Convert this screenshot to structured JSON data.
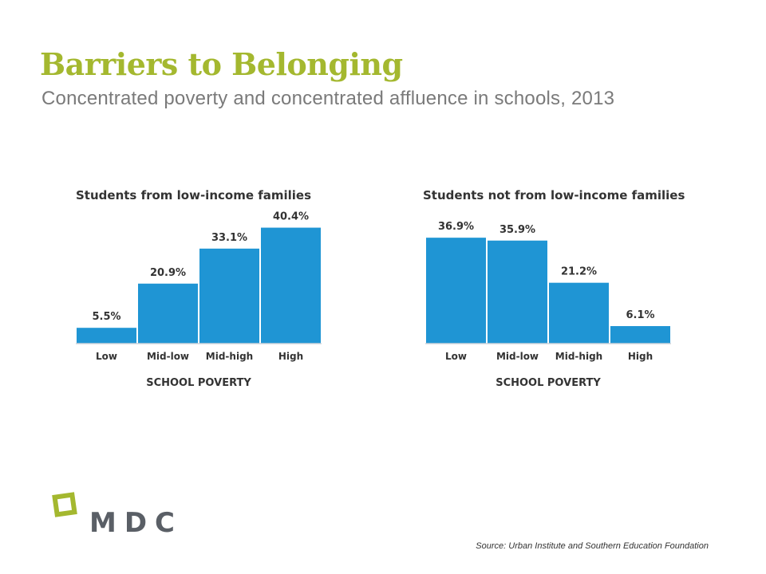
{
  "slide": {
    "title": "Barriers to Belonging",
    "subtitle": "Concentrated poverty and concentrated affluence in schools, 2013",
    "source": "Source: Urban Institute and Southern Education Foundation",
    "logo_text": "MDC"
  },
  "colors": {
    "title": "#a4b82f",
    "bar": "#1f95d4",
    "logo_mark": "#a4b82f",
    "logo_text": "#5a5f66"
  },
  "chart_data": [
    {
      "type": "bar",
      "title": "Students from low-income families",
      "xlabel": "SCHOOL POVERTY",
      "ylabel": "",
      "categories": [
        "Low",
        "Mid-low",
        "Mid-high",
        "High"
      ],
      "values": [
        5.5,
        20.9,
        33.1,
        40.4
      ],
      "data_labels": [
        "5.5%",
        "20.9%",
        "33.1%",
        "40.4%"
      ],
      "ylim": [
        0,
        45
      ],
      "grid": false
    },
    {
      "type": "bar",
      "title": "Students not from low-income families",
      "xlabel": "SCHOOL POVERTY",
      "ylabel": "",
      "categories": [
        "Low",
        "Mid-low",
        "Mid-high",
        "High"
      ],
      "values": [
        36.9,
        35.9,
        21.2,
        6.1
      ],
      "data_labels": [
        "36.9%",
        "35.9%",
        "21.2%",
        "6.1%"
      ],
      "ylim": [
        0,
        45
      ],
      "grid": false
    }
  ]
}
